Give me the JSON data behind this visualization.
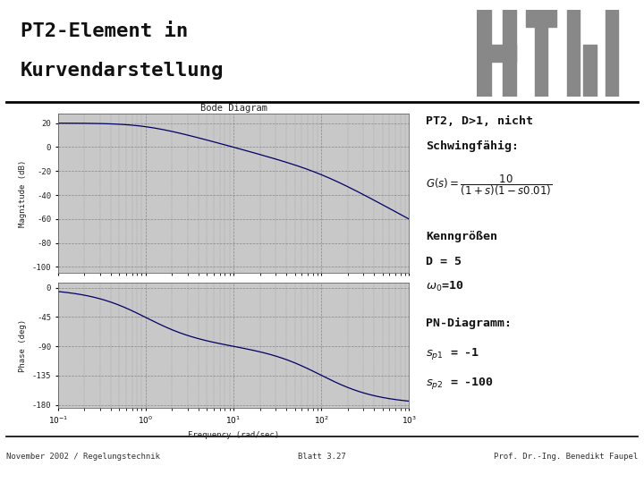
{
  "title_line1": "PT2-Element in",
  "title_line2": "Kurvendarstellung",
  "slide_bg": "#ffffff",
  "plot_bg": "#b8b8b8",
  "inner_bg": "#c8c8c8",
  "line_color": "#000066",
  "grid_color": "#808080",
  "title_fontsize": 16,
  "footer_left": "November 2002 / Regelungstechnik",
  "footer_mid": "Blatt 3.27",
  "footer_right": "Prof. Dr.-Ing. Benedikt Faupel",
  "bode_title": "Bode Diagram",
  "xlabel": "Frequency (rad/sec)",
  "ylabel_mag": "Magnitude (dB)",
  "ylabel_phase": "Phase (deg)",
  "mag_yticks": [
    20,
    0,
    -20,
    -40,
    -60,
    -80,
    -100
  ],
  "mag_ylim": [
    -105,
    28
  ],
  "phase_yticks": [
    0,
    -45,
    -90,
    -135,
    -180
  ],
  "phase_ylim": [
    -185,
    8
  ],
  "freq_lim_log": [
    -1,
    3
  ],
  "K": 10,
  "T1": 1.0,
  "T2": 0.01,
  "text_color": "#111111",
  "logo_color": "#888888"
}
